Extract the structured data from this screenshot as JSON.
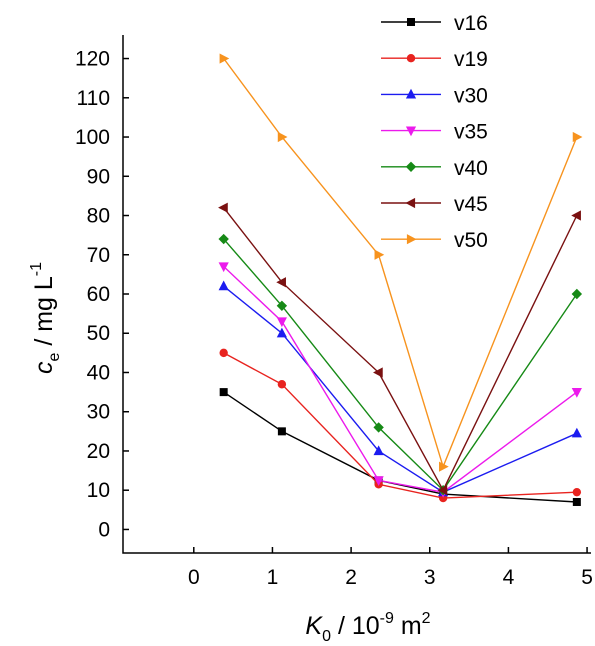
{
  "chart_data": {
    "type": "line",
    "title": "",
    "xlabel": {
      "main": "K",
      "sub": "0",
      "rest": " / 10",
      "sup": "-9",
      "unit": " m",
      "unit_sup": "2"
    },
    "ylabel": {
      "main": "c",
      "sub": "e",
      "rest": " / mg L",
      "sup": "-1"
    },
    "xlim": [
      -0.9,
      5.05
    ],
    "ylim": [
      -6,
      126
    ],
    "xticks": [
      0,
      1,
      2,
      3,
      4,
      5
    ],
    "yticks": [
      0,
      10,
      20,
      30,
      40,
      50,
      60,
      70,
      80,
      90,
      100,
      110,
      120
    ],
    "grid": false,
    "legend_position": "top-right",
    "x": [
      0.38,
      1.12,
      2.35,
      3.17,
      4.87
    ],
    "series": [
      {
        "name": "v16",
        "color": "#000000",
        "marker": "square",
        "values": [
          35,
          25,
          12.5,
          9,
          7
        ]
      },
      {
        "name": "v19",
        "color": "#e8231f",
        "marker": "circle",
        "values": [
          45,
          37,
          11.5,
          8,
          9.5
        ]
      },
      {
        "name": "v30",
        "color": "#1c1cf0",
        "marker": "triangle-up",
        "values": [
          62,
          50,
          20,
          9.5,
          24.5
        ]
      },
      {
        "name": "v35",
        "color": "#ec1aec",
        "marker": "triangle-down",
        "values": [
          67,
          53,
          12.5,
          9.5,
          35
        ]
      },
      {
        "name": "v40",
        "color": "#168a16",
        "marker": "diamond",
        "values": [
          74,
          57,
          26,
          10,
          60
        ]
      },
      {
        "name": "v45",
        "color": "#7a1111",
        "marker": "triangle-left",
        "values": [
          82,
          63,
          40,
          10,
          80
        ]
      },
      {
        "name": "v50",
        "color": "#f7931e",
        "marker": "triangle-right",
        "values": [
          120,
          100,
          70,
          16,
          100
        ]
      }
    ]
  }
}
